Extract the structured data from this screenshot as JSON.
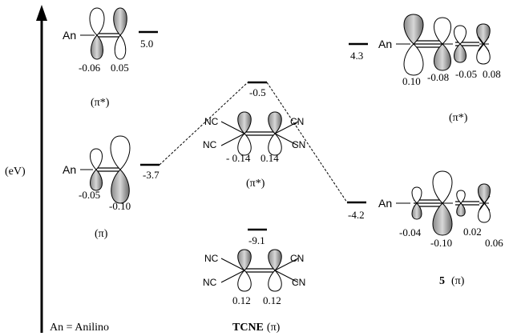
{
  "axis": {
    "label": "(eV)"
  },
  "substituent": "An",
  "legend": "An = Anilino",
  "left_lumo": {
    "energy": "5.0",
    "label": "(π*)",
    "coefficients": [
      "-0.06",
      "0.05"
    ]
  },
  "left_homo": {
    "energy": "-3.7",
    "label": "(π)",
    "coefficients": [
      "-0.05",
      "-0.10"
    ]
  },
  "tcne_lumo": {
    "energy": "-0.5",
    "label": "(π*)",
    "coefficients": [
      "- 0.14",
      "0.14"
    ]
  },
  "tcne_homo": {
    "energy": "-9.1",
    "coefficients": [
      "0.12",
      "0.12"
    ]
  },
  "tcne_name": {
    "name": "TCNE",
    "orbital": "(π)"
  },
  "cyano": {
    "left": "NC",
    "right": "CN"
  },
  "prod_lumo": {
    "energy": "4.3",
    "label": "(π*)",
    "coefficients": [
      "0.10",
      "-0.08",
      "-0.05",
      "0.08"
    ]
  },
  "prod_homo": {
    "energy": "-4.2",
    "coefficients": [
      "-0.04",
      "-0.10",
      "0.02",
      "0.06"
    ]
  },
  "product": {
    "number": "5",
    "orbital": "(π)"
  }
}
